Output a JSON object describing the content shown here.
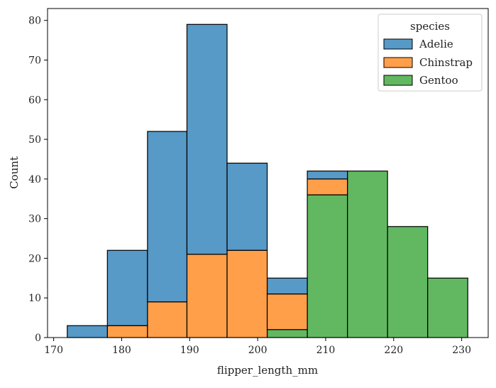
{
  "chart_data": {
    "type": "histogram-stacked",
    "xlabel": "flipper_length_mm",
    "ylabel": "Count",
    "xlim": [
      169.1,
      233.9
    ],
    "ylim": [
      0,
      83
    ],
    "xticks": [
      170,
      180,
      190,
      200,
      210,
      220,
      230
    ],
    "yticks": [
      0,
      10,
      20,
      30,
      40,
      50,
      60,
      70,
      80
    ],
    "grid": false,
    "bin_edges": [
      172.0,
      177.9,
      183.8,
      189.6,
      195.5,
      201.4,
      207.3,
      213.2,
      219.1,
      225.0,
      230.9
    ],
    "series": [
      {
        "name": "Gentoo",
        "color": "#2ca02c",
        "values": [
          0,
          0,
          0,
          0,
          0,
          2,
          36,
          42,
          28,
          15
        ]
      },
      {
        "name": "Chinstrap",
        "color": "#ff7f0e",
        "values": [
          0,
          3,
          9,
          21,
          22,
          9,
          4,
          0,
          0,
          0
        ]
      },
      {
        "name": "Adelie",
        "color": "#1f77b4",
        "values": [
          3,
          19,
          43,
          58,
          22,
          4,
          2,
          0,
          0,
          0
        ]
      }
    ],
    "legend": {
      "title": "species",
      "placement": "top-right",
      "entries": [
        "Adelie",
        "Chinstrap",
        "Gentoo"
      ]
    }
  }
}
